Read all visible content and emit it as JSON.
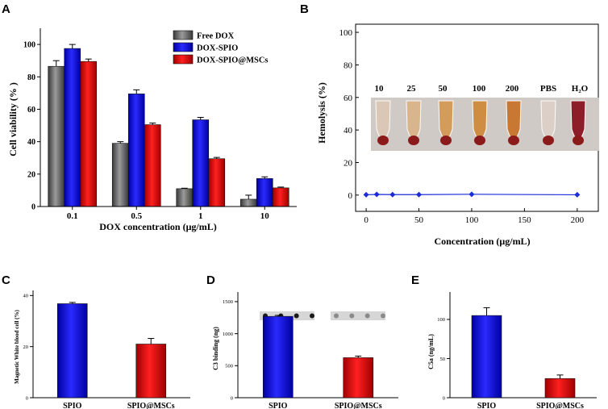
{
  "panel_labels": [
    "A",
    "B",
    "C",
    "D",
    "E"
  ],
  "colors": {
    "gray": "#5a5a5a",
    "blue": "#1010e8",
    "red": "#e01010",
    "line_blue": "#1a2bd8",
    "tube_red": "#8b1a1a"
  },
  "chart_data": [
    {
      "id": "A",
      "type": "bar",
      "title": "",
      "xlabel": "DOX concentration (μg/mL)",
      "ylabel": "Cell viability (% )",
      "ylim": [
        0,
        110
      ],
      "yticks": [
        0,
        20,
        40,
        60,
        80,
        100
      ],
      "categories": [
        "0.1",
        "0.5",
        "1",
        "10"
      ],
      "legend_position": "top-right",
      "series": [
        {
          "name": "Free DOX",
          "color": "gray",
          "values": [
            86.5,
            39,
            11,
            4.5
          ],
          "errors": [
            3.5,
            1,
            0.3,
            2.5
          ]
        },
        {
          "name": "DOX-SPIO",
          "color": "blue",
          "values": [
            97.5,
            69.5,
            53.5,
            17.3
          ],
          "errors": [
            2.5,
            2.5,
            1.5,
            1
          ]
        },
        {
          "name": "DOX-SPIO@MSCs",
          "color": "red",
          "values": [
            89.5,
            50.5,
            29.5,
            11.5
          ],
          "errors": [
            1.5,
            1,
            0.8,
            0.5
          ]
        }
      ]
    },
    {
      "id": "B",
      "type": "line",
      "title": "",
      "xlabel": "Concentration (μg/mL)",
      "ylabel": "Hemolysis (%)",
      "xlim": [
        -10,
        220
      ],
      "ylim": [
        -10,
        105
      ],
      "xticks": [
        0,
        50,
        100,
        150,
        200
      ],
      "yticks": [
        0,
        20,
        40,
        60,
        80,
        100
      ],
      "tube_labels": [
        "10",
        "25",
        "50",
        "100",
        "200",
        "PBS",
        "H₂O"
      ],
      "series": [
        {
          "name": "Hemolysis",
          "color": "line_blue",
          "x": [
            0,
            10,
            25,
            50,
            100,
            200
          ],
          "y": [
            0.2,
            0.4,
            0.3,
            0.3,
            0.5,
            0.2
          ]
        }
      ]
    },
    {
      "id": "C",
      "type": "bar",
      "title": "",
      "xlabel": "",
      "ylabel": "Magnetic White blood cell (%)",
      "ylim": [
        0,
        42
      ],
      "yticks": [
        0,
        20,
        40
      ],
      "categories": [
        "SPIO",
        "SPIO@MSCs"
      ],
      "values": [
        36.8,
        21
      ],
      "errors": [
        0.5,
        2.2
      ],
      "bar_colors": [
        "blue",
        "red"
      ]
    },
    {
      "id": "D",
      "type": "bar",
      "title": "",
      "xlabel": "",
      "ylabel": "C3 binding (ng)",
      "ylim": [
        0,
        1650
      ],
      "yticks": [
        0,
        500,
        1000,
        1500
      ],
      "categories": [
        "SPIO",
        "SPIO@MSCs"
      ],
      "values": [
        1270,
        625
      ],
      "errors": [
        15,
        25
      ],
      "bar_colors": [
        "blue",
        "red"
      ]
    },
    {
      "id": "E",
      "type": "bar",
      "title": "",
      "xlabel": "",
      "ylabel": "C5a (ng/mL)",
      "ylim": [
        0,
        135
      ],
      "yticks": [
        0,
        50,
        100
      ],
      "categories": [
        "SPIO",
        "SPIO@MSCs"
      ],
      "values": [
        105,
        24.5
      ],
      "errors": [
        10,
        4.5
      ],
      "bar_colors": [
        "blue",
        "red"
      ]
    }
  ]
}
